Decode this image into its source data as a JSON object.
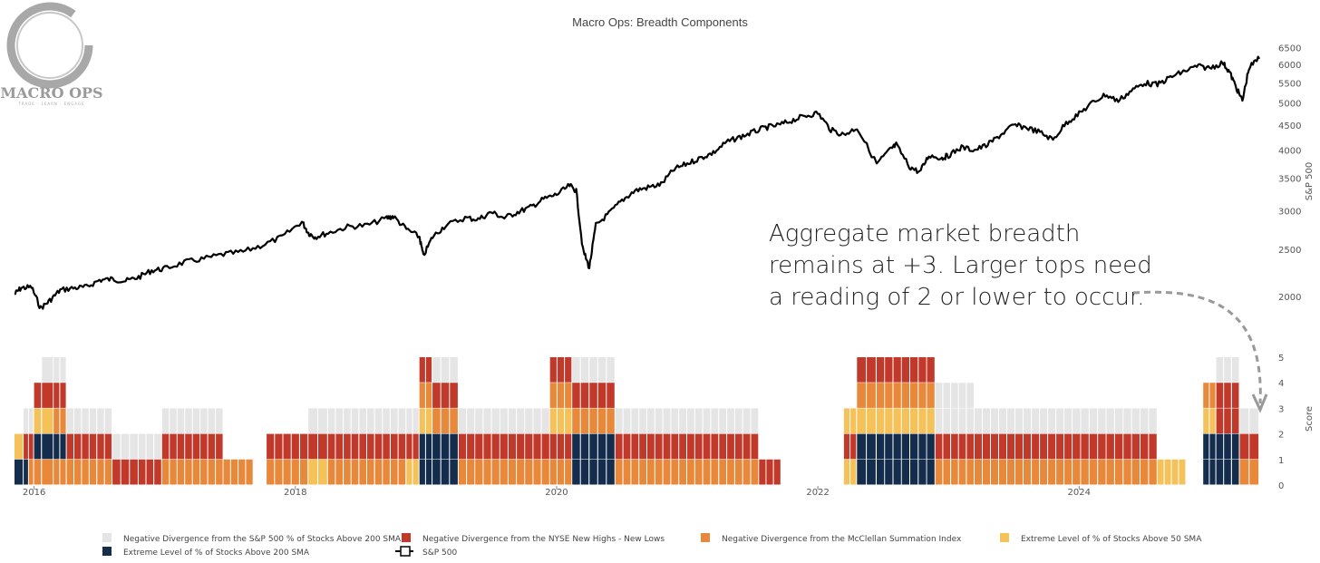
{
  "title": "Macro Ops: Breadth Components",
  "logo": {
    "name": "MACRO OPS",
    "tagline": "TRADE · LEARN · ENGAGE"
  },
  "annotation": [
    "Aggregate market breadth",
    "remains at +3. Larger tops need",
    "a reading of 2 or lower to occur."
  ],
  "colors": {
    "sp500": "#000000",
    "neg_div_200": "#e5e5e5",
    "neg_div_nhnl": "#c0392b",
    "neg_div_mcclellan": "#e8883a",
    "extreme_50sma": "#f5c25a",
    "extreme_200sma": "#142d4c",
    "annotation_arrow": "#999999"
  },
  "chart_data": [
    {
      "type": "line",
      "title": "Macro Ops: Breadth Components",
      "ylabel": "S&P 500",
      "yscale": "log",
      "ylim": [
        1850,
        6800
      ],
      "yticks": [
        2000,
        2500,
        3000,
        3500,
        4000,
        4500,
        5000,
        5500,
        6000,
        6500
      ],
      "xlim": [
        2015.85,
        2025.4
      ],
      "series": [
        {
          "name": "S&P 500",
          "x": [
            2015.85,
            2015.9,
            2015.98,
            2016.05,
            2016.12,
            2016.2,
            2016.3,
            2016.4,
            2016.5,
            2016.6,
            2016.7,
            2016.8,
            2016.9,
            2017.0,
            2017.15,
            2017.3,
            2017.45,
            2017.6,
            2017.75,
            2017.9,
            2018.05,
            2018.1,
            2018.15,
            2018.25,
            2018.4,
            2018.55,
            2018.7,
            2018.75,
            2018.85,
            2018.95,
            2018.98,
            2019.05,
            2019.15,
            2019.3,
            2019.4,
            2019.5,
            2019.6,
            2019.7,
            2019.8,
            2019.9,
            2020.0,
            2020.1,
            2020.15,
            2020.2,
            2020.25,
            2020.3,
            2020.4,
            2020.5,
            2020.6,
            2020.7,
            2020.8,
            2020.9,
            2021.0,
            2021.1,
            2021.2,
            2021.3,
            2021.4,
            2021.5,
            2021.6,
            2021.7,
            2021.8,
            2021.9,
            2022.0,
            2022.1,
            2022.2,
            2022.3,
            2022.45,
            2022.55,
            2022.6,
            2022.7,
            2022.78,
            2022.85,
            2022.95,
            2023.0,
            2023.1,
            2023.2,
            2023.3,
            2023.4,
            2023.5,
            2023.6,
            2023.7,
            2023.8,
            2023.9,
            2024.0,
            2024.1,
            2024.2,
            2024.3,
            2024.4,
            2024.5,
            2024.6,
            2024.7,
            2024.8,
            2024.9,
            2025.0,
            2025.1,
            2025.15,
            2025.2,
            2025.25,
            2025.3,
            2025.38
          ],
          "y": [
            2020,
            2080,
            2090,
            1890,
            1960,
            2060,
            2080,
            2090,
            2160,
            2170,
            2150,
            2190,
            2260,
            2280,
            2350,
            2390,
            2440,
            2470,
            2550,
            2650,
            2850,
            2700,
            2650,
            2700,
            2780,
            2800,
            2900,
            2920,
            2750,
            2650,
            2420,
            2650,
            2800,
            2900,
            2880,
            2980,
            2900,
            2980,
            3050,
            3170,
            3240,
            3380,
            3300,
            2500,
            2290,
            2800,
            2960,
            3150,
            3300,
            3350,
            3400,
            3650,
            3750,
            3850,
            3950,
            4150,
            4250,
            4350,
            4450,
            4500,
            4600,
            4700,
            4770,
            4400,
            4300,
            4450,
            3750,
            4000,
            4100,
            3700,
            3600,
            3900,
            3850,
            3900,
            4050,
            4000,
            4100,
            4300,
            4500,
            4450,
            4350,
            4200,
            4550,
            4750,
            5000,
            5200,
            5050,
            5300,
            5500,
            5450,
            5650,
            5800,
            5950,
            5900,
            6050,
            5800,
            5400,
            5050,
            5900,
            6200
          ]
        }
      ]
    },
    {
      "type": "bar",
      "ylabel": "Score",
      "ylim": [
        0,
        5
      ],
      "yticks": [
        0,
        1,
        2,
        3,
        4,
        5
      ],
      "xticks": [
        "2016",
        "2018",
        "2020",
        "2022",
        "2024"
      ],
      "xtick_values": [
        2016.0,
        2018.0,
        2020.0,
        2022.0,
        2024.0
      ],
      "stack_order_bottom_to_top": [
        "Negative Divergence from the McClellan Summation Index",
        "Extreme Level of % of Stocks Above 200 SMA",
        "Extreme Level of % of Stocks Above 50 SMA",
        "Negative Divergence from the NYSE New Highs - New Lows",
        "Negative Divergence from the S&P 500 % of Stocks Above 200 SMA"
      ],
      "legend": [
        "Negative Divergence from the S&P 500 % of Stocks Above 200 SMA",
        "Negative Divergence from the NYSE New Highs - New Lows",
        "Negative Divergence from the McClellan Summation Index",
        "Extreme Level of % of Stocks Above 50 SMA",
        "Extreme Level of % of Stocks Above 200 SMA",
        "S&P 500"
      ],
      "periods": [
        {
          "x0": 2015.85,
          "x1": 2015.92,
          "stack": [
            "extreme_200sma",
            "extreme_50sma"
          ]
        },
        {
          "x0": 2015.92,
          "x1": 2015.96,
          "stack": [
            "extreme_200sma",
            "neg_div_nhnl",
            "neg_div_200"
          ]
        },
        {
          "x0": 2015.96,
          "x1": 2016.0,
          "stack": [
            "neg_div_mcclellan",
            "neg_div_nhnl",
            "neg_div_200"
          ]
        },
        {
          "x0": 2016.0,
          "x1": 2016.06,
          "stack": [
            "neg_div_mcclellan",
            "extreme_200sma",
            "extreme_50sma",
            "neg_div_nhnl"
          ]
        },
        {
          "x0": 2016.06,
          "x1": 2016.15,
          "stack": [
            "neg_div_mcclellan",
            "extreme_200sma",
            "extreme_50sma",
            "neg_div_nhnl",
            "neg_div_200"
          ]
        },
        {
          "x0": 2016.15,
          "x1": 2016.25,
          "stack": [
            "neg_div_mcclellan",
            "extreme_200sma",
            "neg_div_mcclellan",
            "neg_div_nhnl",
            "neg_div_200"
          ]
        },
        {
          "x0": 2016.25,
          "x1": 2016.6,
          "stack": [
            "neg_div_mcclellan",
            "neg_div_nhnl",
            "neg_div_200"
          ]
        },
        {
          "x0": 2016.6,
          "x1": 2016.8,
          "stack": [
            "neg_div_nhnl",
            "neg_div_200"
          ]
        },
        {
          "x0": 2016.8,
          "x1": 2016.98,
          "stack": [
            "neg_div_nhnl",
            "neg_div_200"
          ]
        },
        {
          "x0": 2016.98,
          "x1": 2017.45,
          "stack": [
            "neg_div_mcclellan",
            "neg_div_nhnl",
            "neg_div_200"
          ]
        },
        {
          "x0": 2017.45,
          "x1": 2017.68,
          "stack": [
            "neg_div_mcclellan"
          ]
        },
        {
          "x0": 2017.78,
          "x1": 2018.1,
          "stack": [
            "neg_div_mcclellan",
            "neg_div_nhnl"
          ]
        },
        {
          "x0": 2018.1,
          "x1": 2018.25,
          "stack": [
            "extreme_50sma",
            "neg_div_nhnl",
            "neg_div_200"
          ]
        },
        {
          "x0": 2018.25,
          "x1": 2018.85,
          "stack": [
            "neg_div_mcclellan",
            "neg_div_nhnl",
            "neg_div_200"
          ]
        },
        {
          "x0": 2018.85,
          "x1": 2018.95,
          "stack": [
            "extreme_50sma",
            "neg_div_nhnl",
            "neg_div_200"
          ]
        },
        {
          "x0": 2018.95,
          "x1": 2019.05,
          "stack": [
            "extreme_200sma",
            "extreme_200sma",
            "extreme_50sma",
            "neg_div_mcclellan",
            "neg_div_nhnl"
          ]
        },
        {
          "x0": 2019.05,
          "x1": 2019.25,
          "stack": [
            "extreme_200sma",
            "extreme_200sma",
            "neg_div_mcclellan",
            "neg_div_nhnl",
            "neg_div_200"
          ]
        },
        {
          "x0": 2019.25,
          "x1": 2019.95,
          "stack": [
            "neg_div_mcclellan",
            "neg_div_nhnl",
            "neg_div_200"
          ]
        },
        {
          "x0": 2019.95,
          "x1": 2020.12,
          "stack": [
            "neg_div_mcclellan",
            "neg_div_nhnl",
            "extreme_50sma",
            "neg_div_mcclellan",
            "neg_div_nhnl"
          ]
        },
        {
          "x0": 2020.12,
          "x1": 2020.45,
          "stack": [
            "extreme_200sma",
            "extreme_200sma",
            "neg_div_mcclellan",
            "neg_div_nhnl",
            "neg_div_200"
          ]
        },
        {
          "x0": 2020.45,
          "x1": 2021.55,
          "stack": [
            "neg_div_mcclellan",
            "neg_div_nhnl",
            "neg_div_200"
          ]
        },
        {
          "x0": 2021.55,
          "x1": 2021.72,
          "stack": [
            "neg_div_nhnl"
          ]
        },
        {
          "x0": 2022.2,
          "x1": 2022.3,
          "stack": [
            "extreme_50sma",
            "neg_div_nhnl",
            "extreme_50sma"
          ]
        },
        {
          "x0": 2022.3,
          "x1": 2022.45,
          "stack": [
            "extreme_200sma",
            "extreme_200sma",
            "extreme_50sma",
            "neg_div_mcclellan",
            "neg_div_nhnl"
          ]
        },
        {
          "x0": 2022.45,
          "x1": 2022.9,
          "stack": [
            "extreme_200sma",
            "extreme_200sma",
            "extreme_50sma",
            "neg_div_mcclellan",
            "neg_div_nhnl"
          ]
        },
        {
          "x0": 2022.9,
          "x1": 2023.2,
          "stack": [
            "neg_div_mcclellan",
            "neg_div_nhnl",
            "neg_div_200",
            "neg_div_200"
          ]
        },
        {
          "x0": 2023.2,
          "x1": 2023.95,
          "stack": [
            "neg_div_mcclellan",
            "neg_div_nhnl",
            "neg_div_200"
          ]
        },
        {
          "x0": 2023.95,
          "x1": 2024.6,
          "stack": [
            "neg_div_mcclellan",
            "neg_div_nhnl",
            "neg_div_200"
          ]
        },
        {
          "x0": 2024.6,
          "x1": 2024.82,
          "stack": [
            "extreme_50sma"
          ]
        },
        {
          "x0": 2024.95,
          "x1": 2025.05,
          "stack": [
            "extreme_200sma",
            "extreme_200sma",
            "extreme_50sma",
            "neg_div_mcclellan"
          ]
        },
        {
          "x0": 2025.05,
          "x1": 2025.23,
          "stack": [
            "extreme_200sma",
            "extreme_200sma",
            "neg_div_nhnl",
            "neg_div_nhnl",
            "neg_div_200"
          ]
        },
        {
          "x0": 2025.23,
          "x1": 2025.38,
          "stack": [
            "neg_div_mcclellan",
            "neg_div_nhnl",
            "neg_div_200"
          ]
        }
      ]
    }
  ]
}
